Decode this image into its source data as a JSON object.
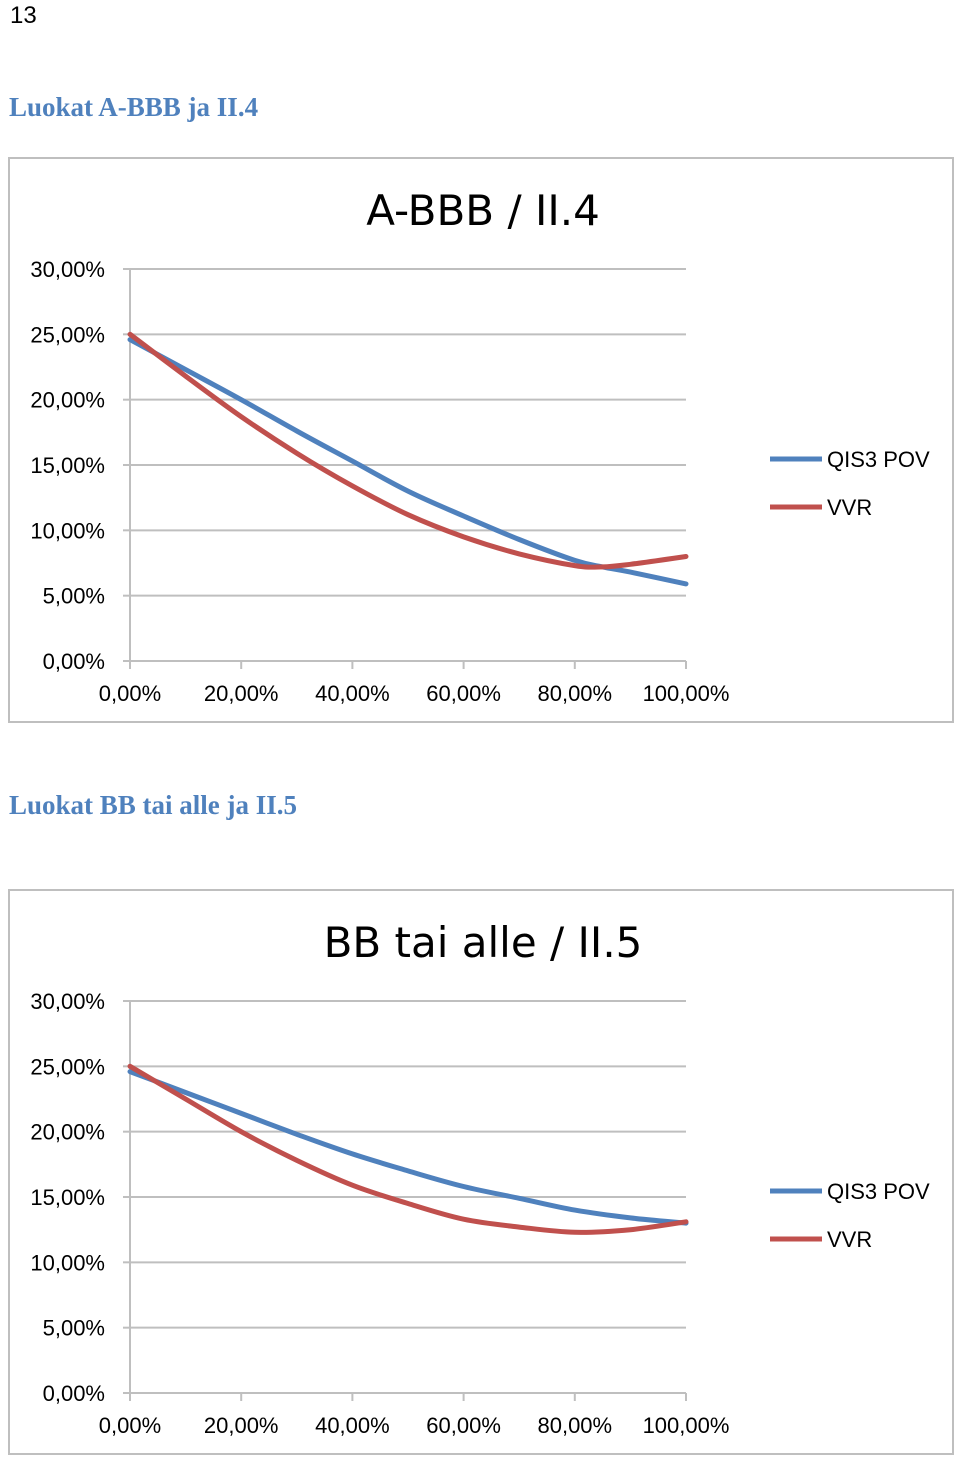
{
  "page": {
    "number": "13"
  },
  "sections": [
    {
      "heading": "Luokat A-BBB ja II.4"
    },
    {
      "heading": "Luokat BB tai alle ja II.5"
    }
  ],
  "colors": {
    "qis3": "#4f81bd",
    "vvr": "#c0504d",
    "grid": "#bfbfbf",
    "heading": "#4f81bd"
  },
  "chart_data": [
    {
      "type": "line",
      "title": "A-BBB / II.4",
      "xlim": [
        0,
        100
      ],
      "ylim": [
        0,
        30
      ],
      "x_ticks": [
        "0,00%",
        "20,00%",
        "40,00%",
        "60,00%",
        "80,00%",
        "100,00%"
      ],
      "y_ticks": [
        "0,00%",
        "5,00%",
        "10,00%",
        "15,00%",
        "20,00%",
        "25,00%",
        "30,00%"
      ],
      "grid": true,
      "legend": "right",
      "x": [
        0,
        10,
        20,
        30,
        40,
        50,
        60,
        70,
        80,
        85,
        90,
        100
      ],
      "series": [
        {
          "name": "QIS3 POV",
          "color": "#4f81bd",
          "values": [
            24.6,
            22.3,
            20.0,
            17.6,
            15.3,
            13.0,
            11.1,
            9.3,
            7.7,
            7.2,
            6.8,
            5.9
          ]
        },
        {
          "name": "VVR",
          "color": "#c0504d",
          "values": [
            25.0,
            21.8,
            18.7,
            15.9,
            13.4,
            11.2,
            9.5,
            8.2,
            7.3,
            7.2,
            7.4,
            8.0
          ]
        }
      ]
    },
    {
      "type": "line",
      "title": "BB tai alle / II.5",
      "xlim": [
        0,
        100
      ],
      "ylim": [
        0,
        30
      ],
      "x_ticks": [
        "0,00%",
        "20,00%",
        "40,00%",
        "60,00%",
        "80,00%",
        "100,00%"
      ],
      "y_ticks": [
        "0,00%",
        "5,00%",
        "10,00%",
        "15,00%",
        "20,00%",
        "25,00%",
        "30,00%"
      ],
      "grid": true,
      "legend": "right",
      "x": [
        0,
        10,
        20,
        30,
        40,
        50,
        60,
        70,
        80,
        90,
        100
      ],
      "series": [
        {
          "name": "QIS3 POV",
          "color": "#4f81bd",
          "values": [
            24.6,
            23.0,
            21.4,
            19.8,
            18.3,
            17.0,
            15.8,
            14.9,
            14.0,
            13.4,
            13.0
          ]
        },
        {
          "name": "VVR",
          "color": "#c0504d",
          "values": [
            25.0,
            22.5,
            20.0,
            17.8,
            15.9,
            14.5,
            13.3,
            12.7,
            12.3,
            12.5,
            13.1
          ]
        }
      ]
    }
  ]
}
